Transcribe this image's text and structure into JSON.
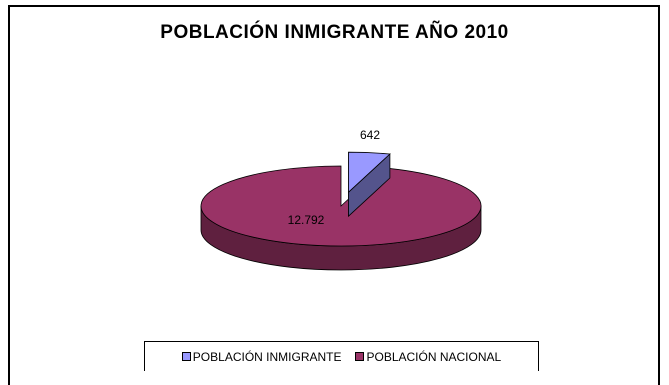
{
  "chart_data": {
    "type": "pie",
    "title": "POBLACIÓN INMIGRANTE AÑO 2010",
    "categories": [
      "POBLACIÓN INMIGRANTE",
      "POBLACIÓN NACIONAL"
    ],
    "values": [
      642,
      12792
    ],
    "data_labels": [
      "642",
      "12.792"
    ],
    "colors": [
      "#9999ff",
      "#993366"
    ],
    "three_d": true,
    "exploded_slice": "POBLACIÓN INMIGRANTE",
    "legend_position": "bottom"
  }
}
